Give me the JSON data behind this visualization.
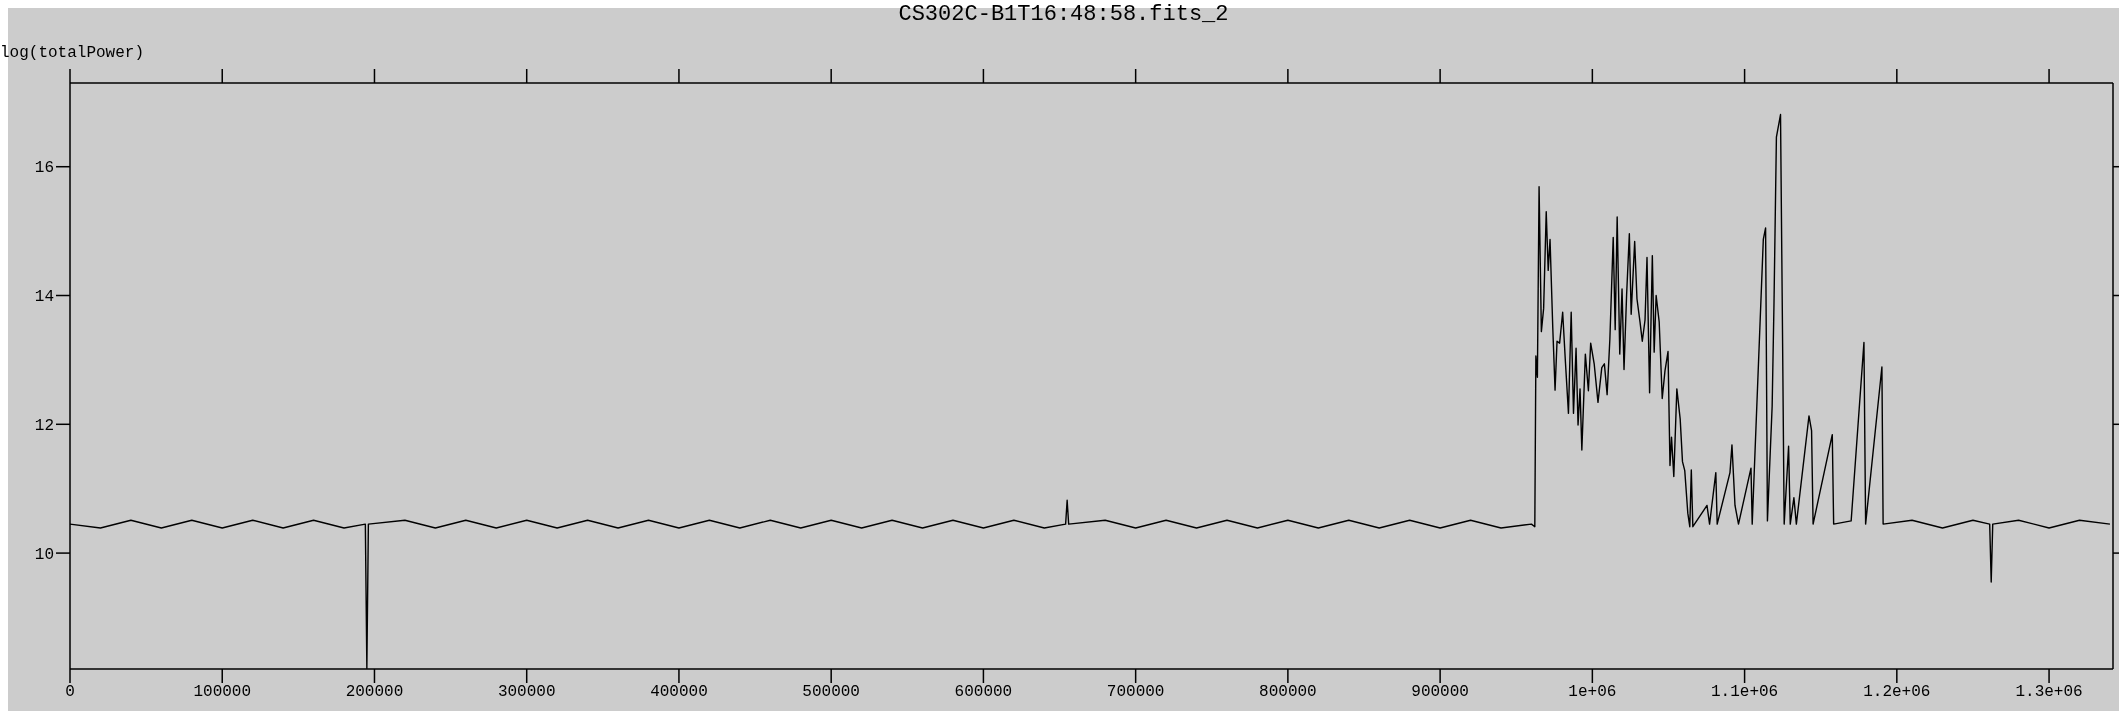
{
  "chart_data": {
    "type": "line",
    "title": "CS302C-B1T16:48:58.fits_2",
    "ylabel": "log(totalPower)",
    "color": "#000000",
    "line_style": "solid",
    "xlim": [
      0,
      1342000
    ],
    "ylim": [
      8.2,
      17.3
    ],
    "xticks": [
      0,
      100000,
      200000,
      300000,
      400000,
      500000,
      600000,
      700000,
      800000,
      900000,
      {
        "value": 1000000,
        "label": "1e+06"
      },
      {
        "value": 1100000,
        "label": "1.1e+06"
      },
      {
        "value": 1200000,
        "label": "1.2e+06"
      },
      {
        "value": 1300000,
        "label": "1.3e+06"
      }
    ],
    "yticks": [
      10,
      12,
      14,
      16
    ],
    "x": [
      0,
      20000,
      40000,
      60000,
      80000,
      100000,
      120000,
      140000,
      160000,
      180000,
      194000,
      195000,
      196000,
      220000,
      240000,
      260000,
      280000,
      300000,
      320000,
      340000,
      360000,
      380000,
      400000,
      420000,
      440000,
      460000,
      480000,
      500000,
      520000,
      540000,
      560000,
      580000,
      600000,
      620000,
      640000,
      654000,
      655000,
      656000,
      680000,
      700000,
      720000,
      740000,
      760000,
      780000,
      800000,
      820000,
      840000,
      860000,
      880000,
      900000,
      920000,
      940000,
      960000,
      962200,
      962900,
      963900,
      965000,
      966500,
      968000,
      969700,
      971000,
      972200,
      974000,
      975500,
      976800,
      978500,
      980500,
      982300,
      984300,
      986100,
      987600,
      989300,
      990600,
      991900,
      993100,
      995400,
      997400,
      998900,
      1001200,
      1003700,
      1006200,
      1007900,
      1009700,
      1011500,
      1013700,
      1015000,
      1016300,
      1018000,
      1019500,
      1020800,
      1022500,
      1024300,
      1025500,
      1027800,
      1029300,
      1031300,
      1032800,
      1034600,
      1035900,
      1037600,
      1039400,
      1040600,
      1041900,
      1043900,
      1045900,
      1047700,
      1049700,
      1051000,
      1052000,
      1053500,
      1055500,
      1057700,
      1059200,
      1060700,
      1062700,
      1064000,
      1065000,
      1066000,
      1075300,
      1077000,
      1081100,
      1082000,
      1090400,
      1091700,
      1093700,
      1096000,
      1104200,
      1105000,
      1112300,
      1113800,
      1115000,
      1118100,
      1119300,
      1120900,
      1123600,
      1125000,
      1126000,
      1128900,
      1130000,
      1132400,
      1134000,
      1142300,
      1144000,
      1145000,
      1157600,
      1158500,
      1170000,
      1178400,
      1179500,
      1190200,
      1191000,
      1210000,
      1230000,
      1250000,
      1261000,
      1262000,
      1263000,
      1280000,
      1300000,
      1320000,
      1340000
    ],
    "values": [
      10.45,
      10.39,
      10.51,
      10.39,
      10.51,
      10.39,
      10.51,
      10.39,
      10.51,
      10.39,
      10.45,
      8.21,
      10.45,
      10.51,
      10.39,
      10.51,
      10.39,
      10.51,
      10.39,
      10.51,
      10.39,
      10.51,
      10.39,
      10.51,
      10.39,
      10.51,
      10.39,
      10.51,
      10.39,
      10.51,
      10.39,
      10.51,
      10.39,
      10.51,
      10.39,
      10.45,
      10.82,
      10.45,
      10.51,
      10.39,
      10.51,
      10.39,
      10.51,
      10.39,
      10.51,
      10.39,
      10.51,
      10.39,
      10.51,
      10.39,
      10.51,
      10.39,
      10.45,
      10.41,
      13.06,
      12.73,
      15.69,
      13.44,
      13.8,
      15.3,
      14.39,
      14.87,
      13.5,
      12.53,
      13.29,
      13.26,
      13.74,
      12.97,
      12.17,
      13.74,
      12.17,
      13.18,
      11.99,
      12.55,
      11.6,
      13.09,
      12.52,
      13.26,
      12.94,
      12.34,
      12.88,
      12.94,
      12.46,
      13.32,
      14.9,
      13.47,
      15.22,
      13.09,
      14.1,
      12.85,
      14.01,
      14.96,
      13.71,
      14.84,
      13.95,
      13.59,
      13.29,
      13.62,
      14.59,
      12.49,
      14.62,
      13.12,
      14.0,
      13.59,
      12.4,
      12.83,
      13.13,
      11.36,
      11.8,
      11.19,
      12.55,
      12.08,
      11.42,
      11.28,
      10.62,
      10.41,
      11.29,
      10.41,
      10.74,
      10.45,
      11.25,
      10.45,
      11.25,
      11.68,
      10.74,
      10.45,
      11.32,
      10.45,
      14.87,
      15.05,
      10.5,
      12.28,
      13.86,
      16.46,
      16.81,
      13.18,
      10.45,
      11.66,
      10.45,
      10.86,
      10.45,
      12.13,
      11.9,
      10.45,
      11.84,
      10.45,
      10.5,
      13.27,
      10.45,
      12.89,
      10.45,
      10.51,
      10.39,
      10.51,
      10.45,
      9.55,
      10.45,
      10.51,
      10.39,
      10.51,
      10.45
    ]
  }
}
